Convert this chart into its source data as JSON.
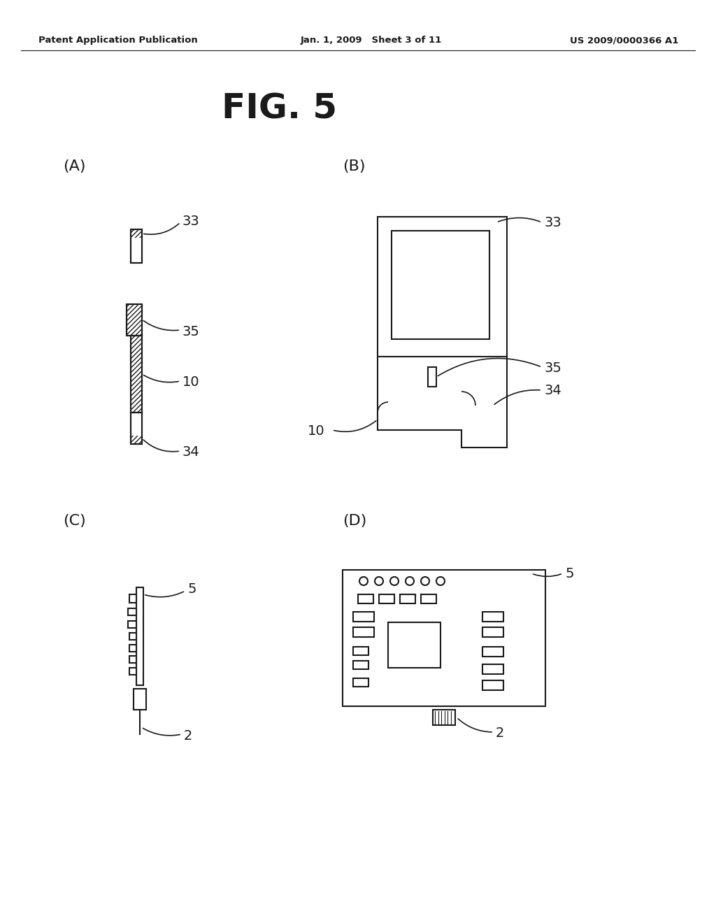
{
  "bg_color": "#ffffff",
  "header_left": "Patent Application Publication",
  "header_mid": "Jan. 1, 2009   Sheet 3 of 11",
  "header_right": "US 2009/0000366 A1",
  "fig_title": "FIG. 5",
  "text_color": "#1a1a1a",
  "line_color": "#1a1a1a"
}
